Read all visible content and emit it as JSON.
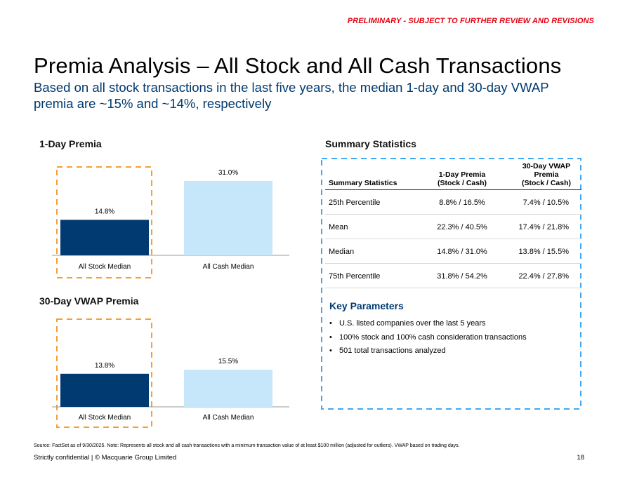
{
  "header": {
    "preliminary": "PRELIMINARY - SUBJECT TO FURTHER REVIEW AND REVISIONS"
  },
  "title": "Premia Analysis – All Stock and All Cash Transactions",
  "subtitle": "Based on all stock transactions in the last five years, the median 1-day and 30-day VWAP premia are ~15% and ~14%, respectively",
  "sections": {
    "one_day": "1-Day Premia",
    "vwap": "30-Day VWAP Premia",
    "summary": "Summary Statistics"
  },
  "colors": {
    "stock": "#003a70",
    "cash": "#c6e6fa",
    "highlight_orange": "#f5a033",
    "highlight_blue": "#3fa9f5"
  },
  "chart_data": [
    {
      "type": "bar",
      "title": "1-Day Premia",
      "categories": [
        "All Stock Median",
        "All Cash Median"
      ],
      "values": [
        14.8,
        31.0
      ],
      "labels": [
        "14.8%",
        "31.0%"
      ],
      "ylim": [
        0,
        35
      ]
    },
    {
      "type": "bar",
      "title": "30-Day VWAP Premia",
      "categories": [
        "All Stock Median",
        "All Cash Median"
      ],
      "values": [
        13.8,
        15.5
      ],
      "labels": [
        "13.8%",
        "15.5%"
      ],
      "ylim": [
        0,
        35
      ]
    }
  ],
  "table": {
    "headers": [
      "Summary Statistics",
      "1-Day Premia\n(Stock / Cash)",
      "30-Day VWAP\nPremia\n(Stock / Cash)"
    ],
    "rows": [
      [
        "25th Percentile",
        "8.8% / 16.5%",
        "7.4% / 10.5%"
      ],
      [
        "Mean",
        "22.3% / 40.5%",
        "17.4% / 21.8%"
      ],
      [
        "Median",
        "14.8% / 31.0%",
        "13.8% / 15.5%"
      ],
      [
        "75th Percentile",
        "31.8% / 54.2%",
        "22.4% / 27.8%"
      ]
    ]
  },
  "key_parameters": {
    "title": "Key Parameters",
    "items": [
      "U.S. listed companies over the last 5 years",
      "100% stock and 100% cash consideration transactions",
      "501 total transactions analyzed"
    ]
  },
  "footnote": "Source: FactSet as of 9/30/2025. Note: Represents all stock and all cash transactions with a minimum transaction value of at least $100 million (adjusted for outliers). VWAP based on trading days.",
  "footer": {
    "confidential": "Strictly confidential | © Macquarie Group Limited",
    "page": "18"
  }
}
